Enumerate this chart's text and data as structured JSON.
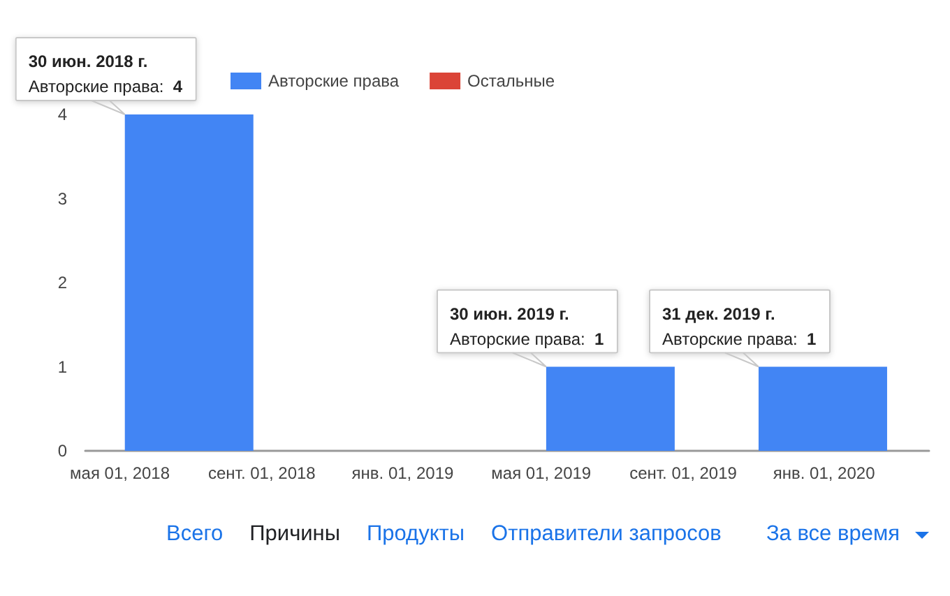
{
  "chart_data": {
    "type": "bar",
    "x": [
      "2018-06-30",
      "2018-12-31",
      "2019-06-30",
      "2019-12-31"
    ],
    "series": [
      {
        "name": "Авторские права",
        "color": "#4285f4",
        "values": [
          4,
          0,
          1,
          1
        ]
      },
      {
        "name": "Остальные",
        "color": "#db4437",
        "values": [
          0,
          0,
          0,
          0
        ]
      }
    ],
    "stacked": true,
    "xlim": [
      "2018-04-01",
      "2020-04-01"
    ],
    "xticks": [
      {
        "value": "2018-05-01",
        "label": "мая 01, 2018"
      },
      {
        "value": "2018-09-01",
        "label": "сент. 01, 2018"
      },
      {
        "value": "2019-01-01",
        "label": "янв. 01, 2019"
      },
      {
        "value": "2019-05-01",
        "label": "мая 01, 2019"
      },
      {
        "value": "2019-09-01",
        "label": "сент. 01, 2019"
      },
      {
        "value": "2020-01-01",
        "label": "янв. 01, 2020"
      }
    ],
    "ylim": [
      0,
      4
    ],
    "yticks": [
      0,
      1,
      2,
      3,
      4
    ],
    "legend": "top left",
    "annotations": [
      {
        "text": "30 июн. 2018 г.\nАвторские права: 4",
        "x": "2018-06-30",
        "y": 4
      },
      {
        "text": "30 июн. 2019 г.\nАвторские права: 1",
        "x": "2019-06-30",
        "y": 1
      },
      {
        "text": "31 дек. 2019 г.\nАвторские права: 1",
        "x": "2019-12-31",
        "y": 1
      },
      "Всего",
      "Причины",
      "Продукты",
      "Отправители запросов",
      "За все время"
    ]
  }
}
